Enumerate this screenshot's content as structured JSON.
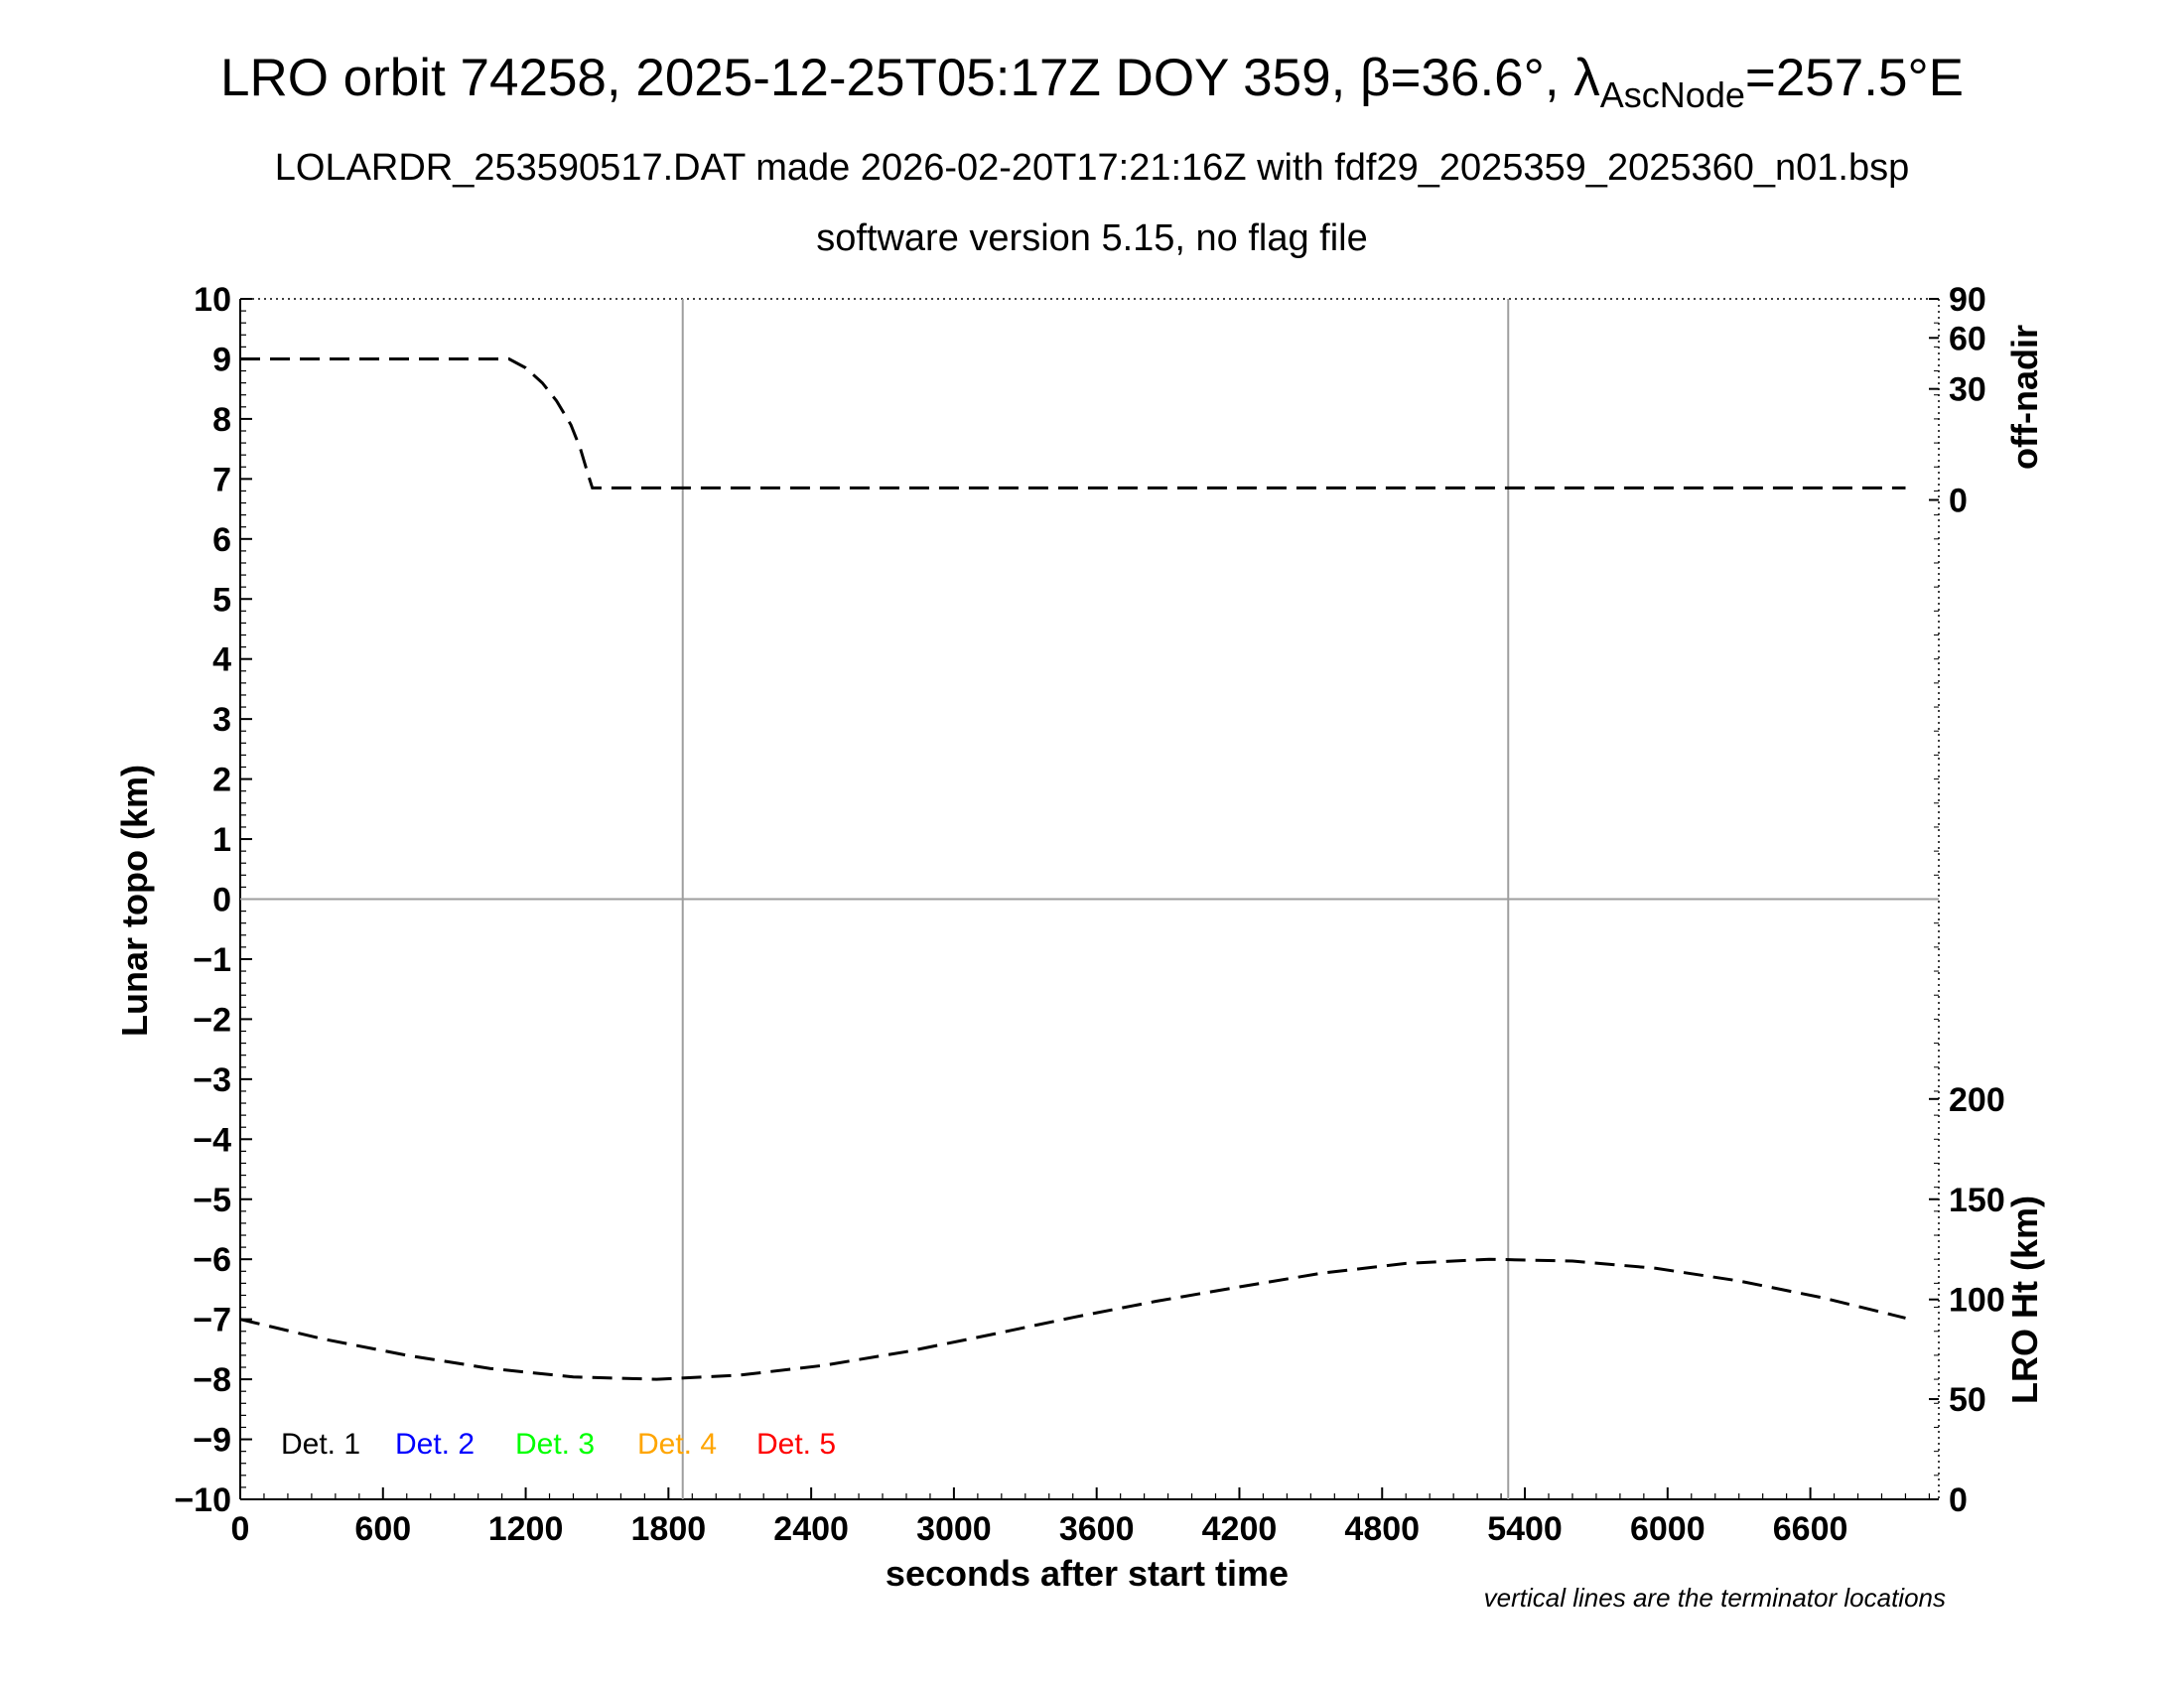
{
  "header": {
    "title_main": "LRO orbit 74258, 2025-12-25T05:17Z DOY 359, β=36.6°, λ",
    "title_sub": "AscNode",
    "title_end": "=257.5°E",
    "subtitle1": "LOLARDR_253590517.DAT made 2026-02-20T17:21:16Z with fdf29_2025359_2025360_n01.bsp",
    "subtitle2": "software version 5.15, no flag file"
  },
  "footer": {
    "note": "vertical lines are the terminator locations"
  },
  "chart_data": {
    "type": "line",
    "xlabel": "seconds after start time",
    "ylabel": "Lunar topo (km)",
    "y2_upper_label": "off-nadir",
    "y2_lower_label": "LRO Ht (km)",
    "xlim": [
      0,
      7140
    ],
    "ylim": [
      -10,
      10
    ],
    "x_ticks": [
      0,
      600,
      1200,
      1800,
      2400,
      3000,
      3600,
      4200,
      4800,
      5400,
      6000,
      6600
    ],
    "y_ticks": [
      10,
      9,
      8,
      7,
      6,
      5,
      4,
      3,
      2,
      1,
      0,
      -1,
      -2,
      -3,
      -4,
      -5,
      -6,
      -7,
      -8,
      -9,
      -10
    ],
    "y_tick_labels": [
      "10",
      "9",
      "8",
      "7",
      "6",
      "5",
      "4",
      "3",
      "2",
      "1",
      "0",
      "−1",
      "−2",
      "−3",
      "−4",
      "−5",
      "−6",
      "−7",
      "−8",
      "−9",
      "−10"
    ],
    "off_nadir_ticks": [
      {
        "label": "90",
        "y": 10
      },
      {
        "label": "60",
        "y": 9.35
      },
      {
        "label": "30",
        "y": 8.5
      },
      {
        "label": "0",
        "y": 6.65
      }
    ],
    "lro_ht_ticks": [
      {
        "label": "200",
        "y": -3.33
      },
      {
        "label": "150",
        "y": -5
      },
      {
        "label": "100",
        "y": -6.67
      },
      {
        "label": "50",
        "y": -8.33
      },
      {
        "label": "0",
        "y": -10
      }
    ],
    "terminator_lines_x": [
      1860,
      5330
    ],
    "zero_line_y": 0,
    "grid": false,
    "legend_position": "bottom-left",
    "legend": [
      {
        "label": "Det. 1",
        "color": "#000000"
      },
      {
        "label": "Det. 2",
        "color": "#0000ff"
      },
      {
        "label": "Det. 3",
        "color": "#00ff00"
      },
      {
        "label": "Det. 4",
        "color": "#ffa500"
      },
      {
        "label": "Det. 5",
        "color": "#ff0000"
      }
    ],
    "series": [
      {
        "x": [
          0,
          300,
          600,
          900,
          1130,
          1200,
          1270,
          1330,
          1390,
          1430,
          1460,
          1480,
          1600,
          2400,
          3600,
          4800,
          6000,
          7000
        ],
        "values": [
          9,
          9,
          9,
          9,
          9,
          8.85,
          8.6,
          8.3,
          7.9,
          7.5,
          7.1,
          6.85,
          6.85,
          6.85,
          6.85,
          6.85,
          6.85,
          6.85
        ],
        "color": "#000000",
        "dash": "dashed"
      },
      {
        "x": [
          0,
          350,
          700,
          1050,
          1400,
          1750,
          2100,
          2450,
          2800,
          3150,
          3500,
          3850,
          4200,
          4550,
          4900,
          5250,
          5600,
          5950,
          6300,
          6650,
          7000
        ],
        "values": [
          -7.0,
          -7.33,
          -7.6,
          -7.82,
          -7.96,
          -8.0,
          -7.93,
          -7.77,
          -7.54,
          -7.26,
          -6.97,
          -6.7,
          -6.46,
          -6.23,
          -6.07,
          -6.0,
          -6.03,
          -6.15,
          -6.36,
          -6.64,
          -6.98
        ],
        "color": "#000000",
        "dash": "dashed"
      }
    ]
  }
}
